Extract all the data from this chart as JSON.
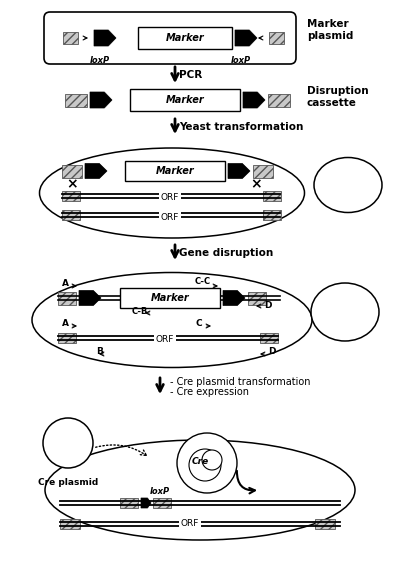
{
  "bg_color": "#ffffff",
  "fig_width": 4.14,
  "fig_height": 5.67,
  "dpi": 100,
  "marker_plasmid_label": "Marker\nplasmid",
  "disruption_cassette_label": "Disruption\ncassette",
  "yeast_transformation_label": "Yeast transformation",
  "gene_disruption_label": "Gene disruption",
  "cre_step_label1": "- Cre plasmid transformation",
  "cre_step_label2": "- Cre expression",
  "cre_plasmid_label": "Cre plasmid",
  "pcr_label": "PCR",
  "marker_text": "Marker",
  "orf_text": "ORF",
  "loxp_text": "loxP"
}
